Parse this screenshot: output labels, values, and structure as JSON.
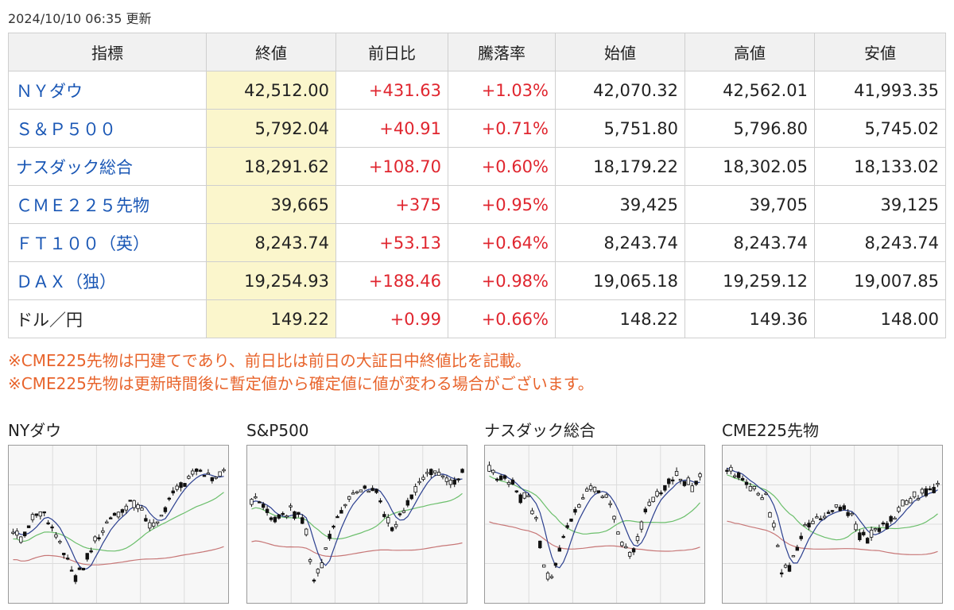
{
  "updated": "2024/10/10 06:35 更新",
  "table": {
    "headers": [
      "指標",
      "終値",
      "前日比",
      "騰落率",
      "始値",
      "高値",
      "安値"
    ],
    "rows": [
      {
        "name": "ＮＹダウ",
        "link": true,
        "close": "42,512.00",
        "change": "+431.63",
        "pct": "+1.03%",
        "open": "42,070.32",
        "high": "42,562.01",
        "low": "41,993.35"
      },
      {
        "name": "Ｓ＆Ｐ５００",
        "link": true,
        "close": "5,792.04",
        "change": "+40.91",
        "pct": "+0.71%",
        "open": "5,751.80",
        "high": "5,796.80",
        "low": "5,745.02"
      },
      {
        "name": "ナスダック総合",
        "link": true,
        "close": "18,291.62",
        "change": "+108.70",
        "pct": "+0.60%",
        "open": "18,179.22",
        "high": "18,302.05",
        "low": "18,133.02"
      },
      {
        "name": "ＣＭＥ２２５先物",
        "link": true,
        "close": "39,665",
        "change": "+375",
        "pct": "+0.95%",
        "open": "39,425",
        "high": "39,705",
        "low": "39,125"
      },
      {
        "name": "ＦＴ１００（英）",
        "link": true,
        "close": "8,243.74",
        "change": "+53.13",
        "pct": "+0.64%",
        "open": "8,243.74",
        "high": "8,243.74",
        "low": "8,243.74"
      },
      {
        "name": "ＤＡＸ（独）",
        "link": true,
        "close": "19,254.93",
        "change": "+188.46",
        "pct": "+0.98%",
        "open": "19,065.18",
        "high": "19,259.12",
        "low": "19,007.85"
      },
      {
        "name": "ドル／円",
        "link": false,
        "close": "149.22",
        "change": "+0.99",
        "pct": "+0.66%",
        "open": "148.22",
        "high": "149.36",
        "low": "148.00"
      }
    ]
  },
  "notes": [
    "※CME225先物は円建てであり、前日比は前日の大証日中終値比を記載。",
    "※CME225先物は更新時間後に暫定値から確定値に値が変わる場合がございます。"
  ],
  "colors": {
    "link": "#1a57b5",
    "up": "#e0262f",
    "note": "#e8642c",
    "close_highlight": "#fbf6cc",
    "ma_short": "#2b3f8f",
    "ma_mid": "#6cbf6c",
    "ma_long": "#c77777"
  },
  "charts": [
    {
      "title": "NYダウ",
      "seed": 11,
      "path": [
        0.45,
        0.42,
        0.5,
        0.6,
        0.58,
        0.48,
        0.38,
        0.25,
        0.12,
        0.2,
        0.32,
        0.45,
        0.52,
        0.58,
        0.6,
        0.7,
        0.68,
        0.55,
        0.5,
        0.58,
        0.7,
        0.78,
        0.84,
        0.88,
        0.9,
        0.86,
        0.87,
        0.92
      ]
    },
    {
      "title": "S&P500",
      "seed": 23,
      "path": [
        0.7,
        0.66,
        0.6,
        0.55,
        0.58,
        0.62,
        0.6,
        0.45,
        0.08,
        0.22,
        0.4,
        0.58,
        0.66,
        0.76,
        0.78,
        0.8,
        0.75,
        0.62,
        0.48,
        0.56,
        0.7,
        0.8,
        0.86,
        0.9,
        0.88,
        0.85,
        0.84,
        0.9
      ]
    },
    {
      "title": "ナスダック総合",
      "seed": 37,
      "path": [
        0.92,
        0.86,
        0.84,
        0.8,
        0.7,
        0.72,
        0.55,
        0.2,
        0.08,
        0.3,
        0.48,
        0.62,
        0.72,
        0.78,
        0.76,
        0.7,
        0.55,
        0.4,
        0.28,
        0.42,
        0.62,
        0.72,
        0.76,
        0.82,
        0.88,
        0.84,
        0.8,
        0.88
      ]
    },
    {
      "title": "CME225先物",
      "seed": 51,
      "path": [
        0.95,
        0.9,
        0.86,
        0.8,
        0.74,
        0.7,
        0.48,
        0.15,
        0.2,
        0.35,
        0.5,
        0.55,
        0.58,
        0.6,
        0.62,
        0.63,
        0.55,
        0.45,
        0.42,
        0.46,
        0.5,
        0.55,
        0.62,
        0.68,
        0.72,
        0.75,
        0.76,
        0.8
      ]
    }
  ]
}
